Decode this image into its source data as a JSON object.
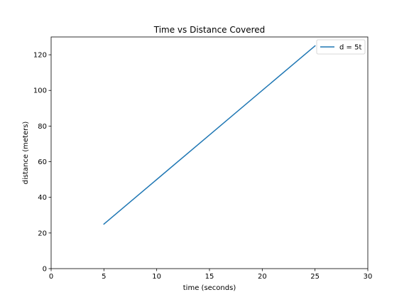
{
  "chart_data": {
    "type": "line",
    "title": "Time vs Distance Covered",
    "xlabel": "time (seconds)",
    "ylabel": "distance (meters)",
    "xlim": [
      0,
      30
    ],
    "ylim": [
      0,
      130
    ],
    "x_ticks": [
      0,
      5,
      10,
      15,
      20,
      25,
      30
    ],
    "y_ticks": [
      0,
      20,
      40,
      60,
      80,
      100,
      120
    ],
    "grid": false,
    "legend": "top-right",
    "series": [
      {
        "name": "d = 5t",
        "color": "#1f77b4",
        "x": [
          5,
          10,
          15,
          20,
          25
        ],
        "y": [
          25,
          50,
          75,
          100,
          125
        ]
      }
    ]
  }
}
